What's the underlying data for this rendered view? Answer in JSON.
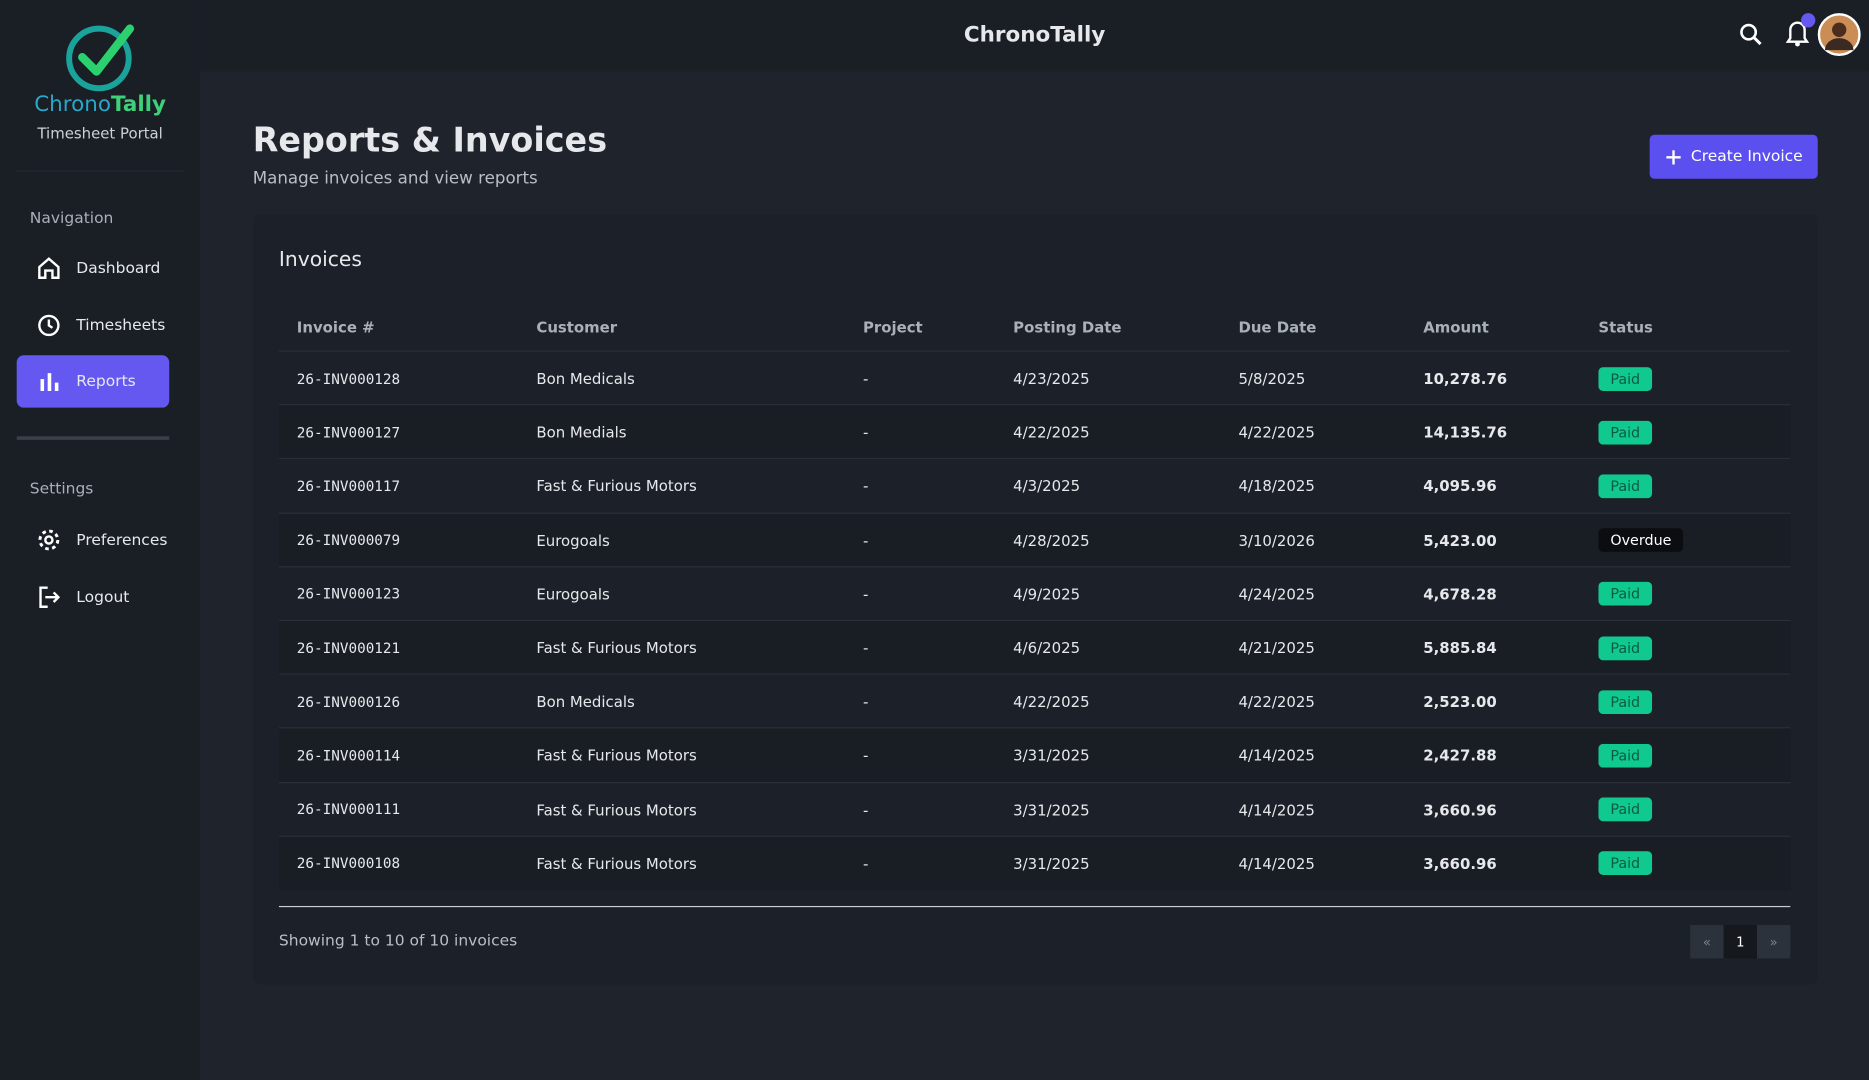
{
  "brand": {
    "name_a": "Chrono",
    "name_b": "Tally",
    "subtitle": "Timesheet Portal"
  },
  "header": {
    "title": "ChronoTally"
  },
  "nav": {
    "section": "Navigation",
    "items": [
      "Dashboard",
      "Timesheets",
      "Reports"
    ]
  },
  "settings": {
    "section": "Settings",
    "items": [
      "Preferences",
      "Logout"
    ]
  },
  "page": {
    "title": "Reports & Invoices",
    "subtitle": "Manage invoices and view reports",
    "action": "Create Invoice"
  },
  "table": {
    "title": "Invoices",
    "columns": [
      "Invoice #",
      "Customer",
      "Project",
      "Posting Date",
      "Due Date",
      "Amount",
      "Status"
    ],
    "rows": [
      [
        "26-INV000128",
        "Bon Medicals",
        "-",
        "4/23/2025",
        "5/8/2025",
        "10,278.76",
        "Paid"
      ],
      [
        "26-INV000127",
        "Bon Medials",
        "-",
        "4/22/2025",
        "4/22/2025",
        "14,135.76",
        "Paid"
      ],
      [
        "26-INV000117",
        "Fast & Furious Motors",
        "-",
        "4/3/2025",
        "4/18/2025",
        "4,095.96",
        "Paid"
      ],
      [
        "26-INV000079",
        "Eurogoals",
        "-",
        "4/28/2025",
        "3/10/2026",
        "5,423.00",
        "Overdue"
      ],
      [
        "26-INV000123",
        "Eurogoals",
        "-",
        "4/9/2025",
        "4/24/2025",
        "4,678.28",
        "Paid"
      ],
      [
        "26-INV000121",
        "Fast & Furious Motors",
        "-",
        "4/6/2025",
        "4/21/2025",
        "5,885.84",
        "Paid"
      ],
      [
        "26-INV000126",
        "Bon Medicals",
        "-",
        "4/22/2025",
        "4/22/2025",
        "2,523.00",
        "Paid"
      ],
      [
        "26-INV000114",
        "Fast & Furious Motors",
        "-",
        "3/31/2025",
        "4/14/2025",
        "2,427.88",
        "Paid"
      ],
      [
        "26-INV000111",
        "Fast & Furious Motors",
        "-",
        "3/31/2025",
        "4/14/2025",
        "3,660.96",
        "Paid"
      ],
      [
        "26-INV000108",
        "Fast & Furious Motors",
        "-",
        "3/31/2025",
        "4/14/2025",
        "3,660.96",
        "Paid"
      ]
    ]
  },
  "footer": {
    "summary": "Showing 1 to 10 of 10 invoices",
    "pager": [
      "«",
      "1",
      "»"
    ]
  }
}
